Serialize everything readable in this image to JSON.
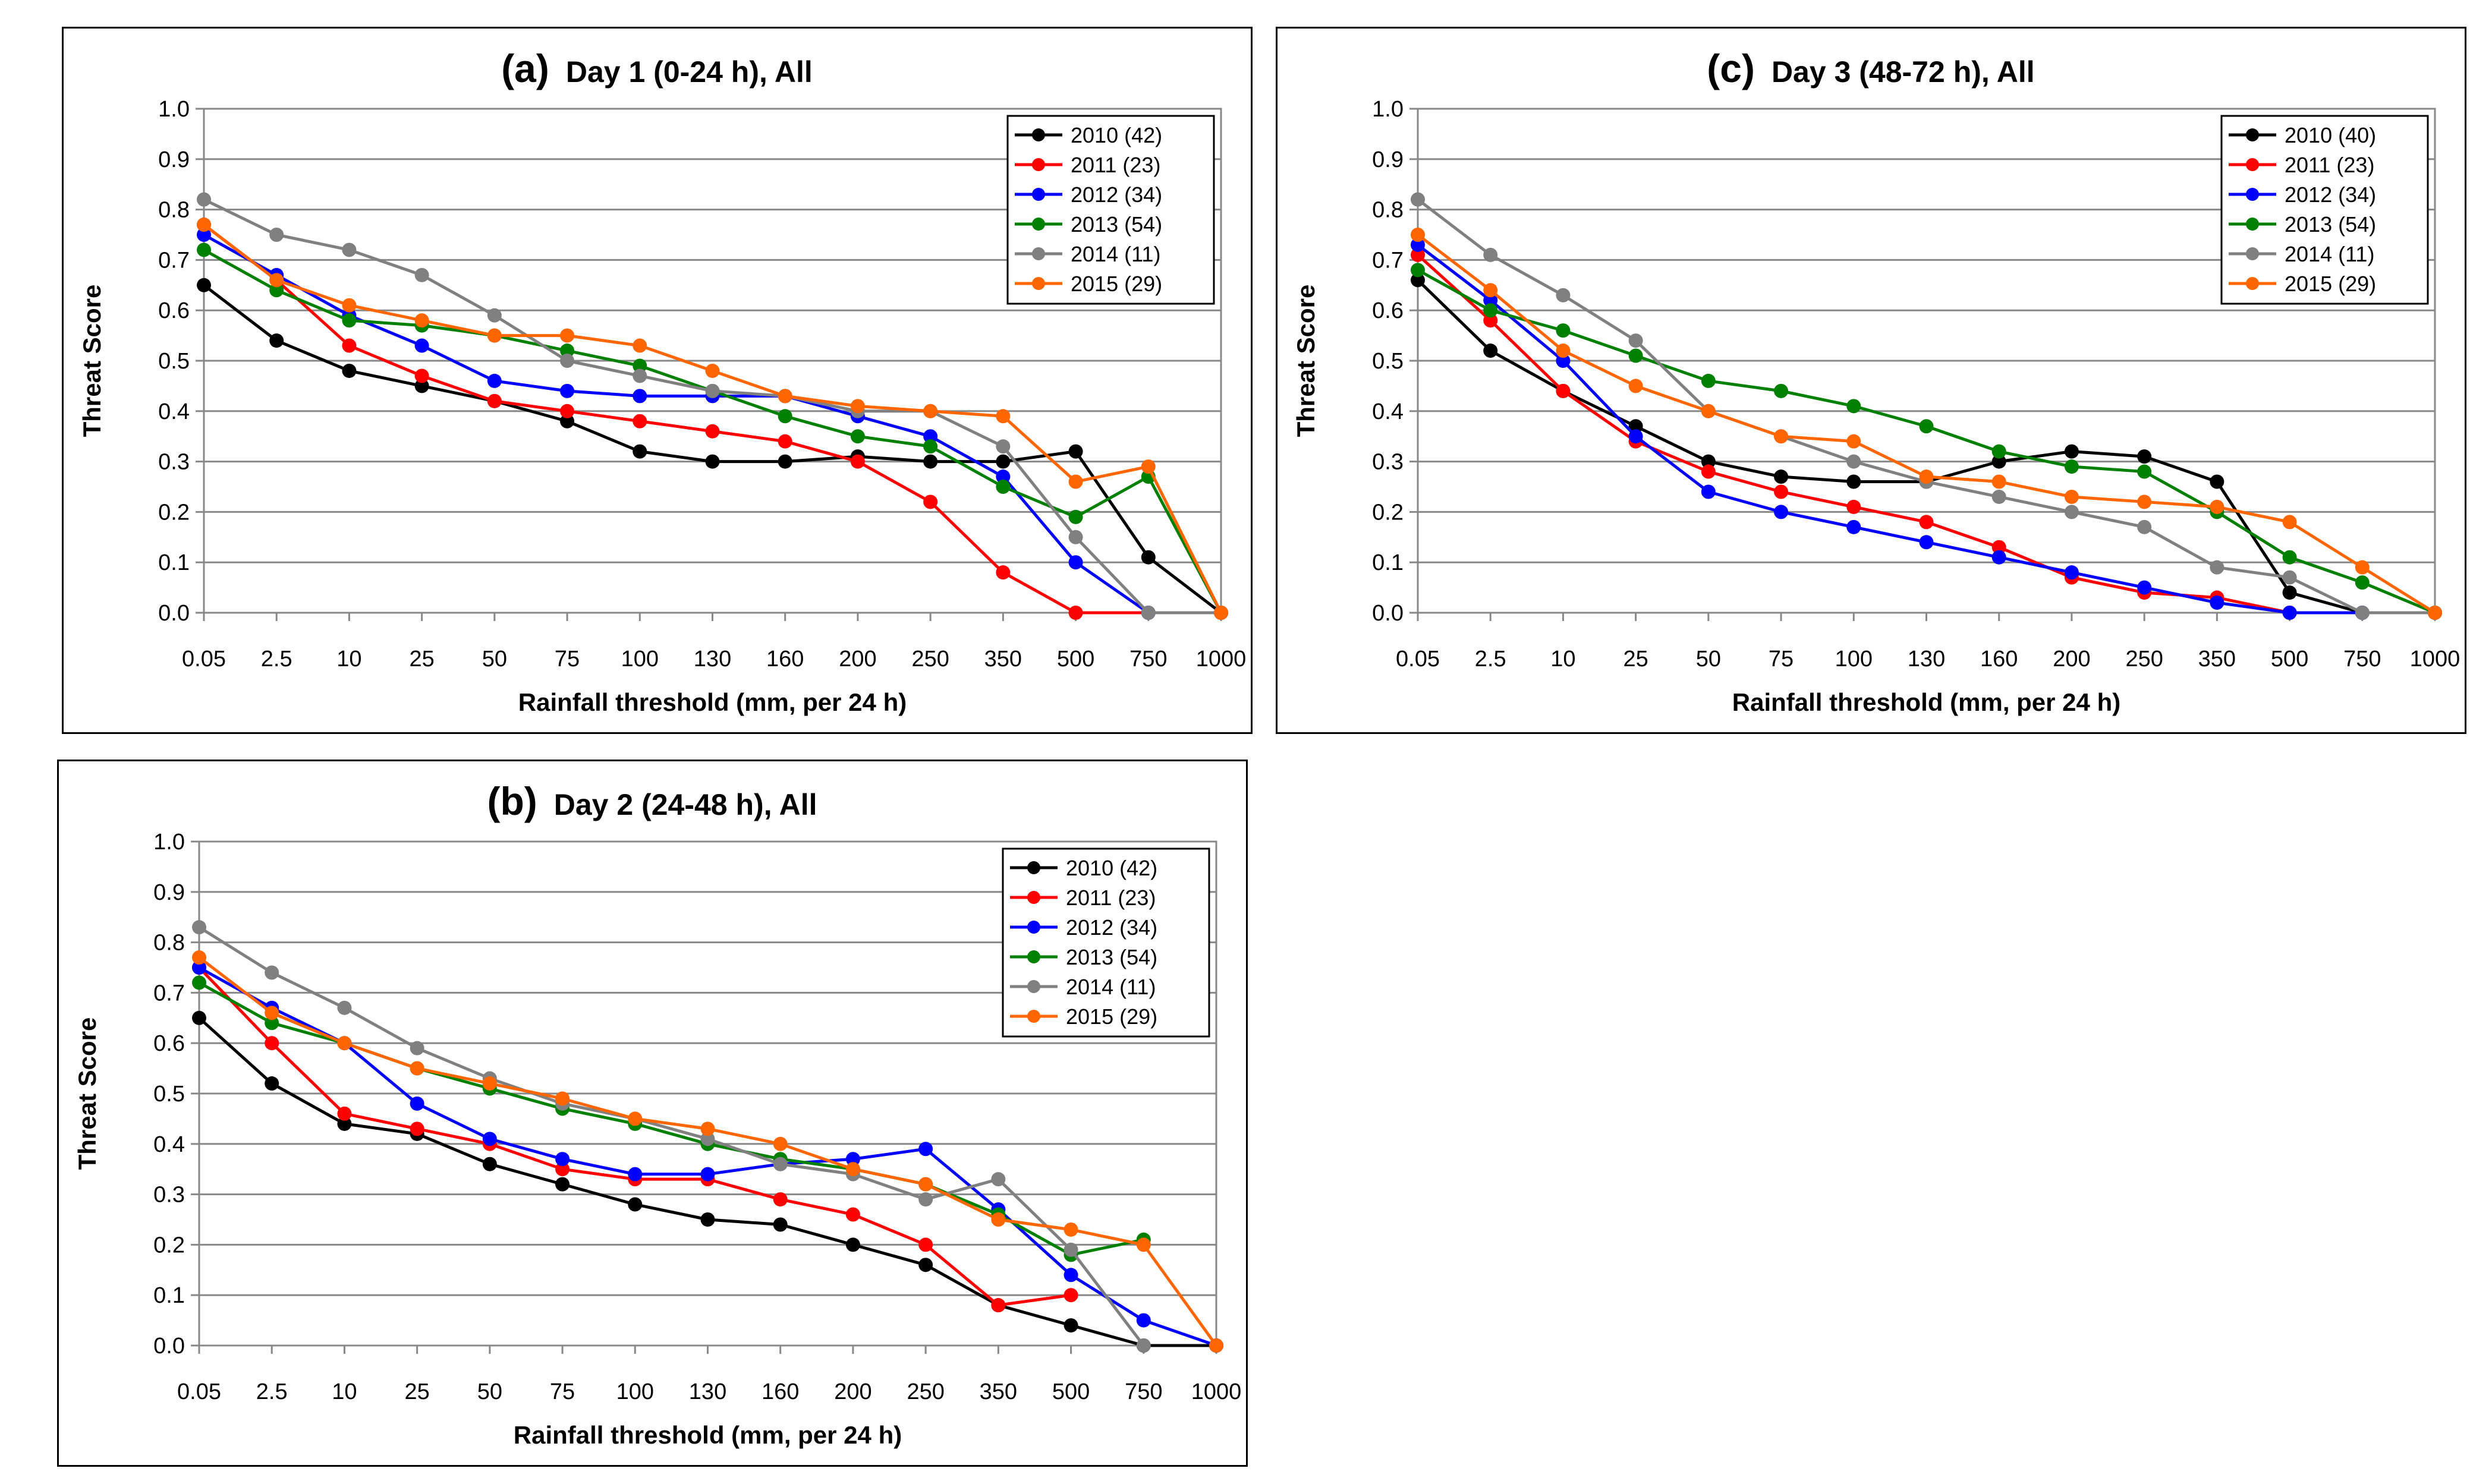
{
  "chart_data": [
    {
      "id": "a",
      "type": "line",
      "panel_letter": "(a)",
      "title": "Day 1 (0-24 h), All",
      "xlabel": "Rainfall threshold (mm, per 24 h)",
      "ylabel": "Threat Score",
      "ylim": [
        0,
        1.0
      ],
      "yticks": [
        "0.0",
        "0.1",
        "0.2",
        "0.3",
        "0.4",
        "0.5",
        "0.6",
        "0.7",
        "0.8",
        "0.9",
        "1.0"
      ],
      "categories": [
        "0.05",
        "2.5",
        "10",
        "25",
        "50",
        "75",
        "100",
        "130",
        "160",
        "200",
        "250",
        "350",
        "500",
        "750",
        "1000"
      ],
      "grid": "horizontal",
      "legend_position": "top-right",
      "series": [
        {
          "name": "2010 (42)",
          "color": "#000000",
          "values": [
            0.65,
            0.54,
            0.48,
            0.45,
            0.42,
            0.38,
            0.32,
            0.3,
            0.3,
            0.31,
            0.3,
            0.3,
            0.32,
            0.11,
            0.0
          ]
        },
        {
          "name": "2011 (23)",
          "color": "#ff0000",
          "values": [
            0.77,
            0.66,
            0.53,
            0.47,
            0.42,
            0.4,
            0.38,
            0.36,
            0.34,
            0.3,
            0.22,
            0.08,
            0.0,
            0.0,
            0.0
          ]
        },
        {
          "name": "2012 (34)",
          "color": "#0000ff",
          "values": [
            0.75,
            0.67,
            0.59,
            0.53,
            0.46,
            0.44,
            0.43,
            0.43,
            0.43,
            0.39,
            0.35,
            0.27,
            0.1,
            0.0,
            0.0
          ]
        },
        {
          "name": "2013 (54)",
          "color": "#008000",
          "values": [
            0.72,
            0.64,
            0.58,
            0.57,
            0.55,
            0.52,
            0.49,
            0.44,
            0.39,
            0.35,
            0.33,
            0.25,
            0.19,
            0.27,
            0.0
          ]
        },
        {
          "name": "2014 (11)",
          "color": "#808080",
          "values": [
            0.82,
            0.75,
            0.72,
            0.67,
            0.59,
            0.5,
            0.47,
            0.44,
            0.43,
            0.4,
            0.4,
            0.33,
            0.15,
            0.0,
            0.0
          ]
        },
        {
          "name": "2015 (29)",
          "color": "#ff6600",
          "values": [
            0.77,
            0.66,
            0.61,
            0.58,
            0.55,
            0.55,
            0.53,
            0.48,
            0.43,
            0.41,
            0.4,
            0.39,
            0.26,
            0.29,
            0.0
          ]
        }
      ]
    },
    {
      "id": "c",
      "type": "line",
      "panel_letter": "(c)",
      "title": "Day 3 (48-72 h), All",
      "xlabel": "Rainfall threshold (mm, per 24 h)",
      "ylabel": "Threat Score",
      "ylim": [
        0,
        1.0
      ],
      "yticks": [
        "0.0",
        "0.1",
        "0.2",
        "0.3",
        "0.4",
        "0.5",
        "0.6",
        "0.7",
        "0.8",
        "0.9",
        "1.0"
      ],
      "categories": [
        "0.05",
        "2.5",
        "10",
        "25",
        "50",
        "75",
        "100",
        "130",
        "160",
        "200",
        "250",
        "350",
        "500",
        "750",
        "1000"
      ],
      "grid": "horizontal",
      "legend_position": "top-right",
      "series": [
        {
          "name": "2010 (40)",
          "color": "#000000",
          "values": [
            0.66,
            0.52,
            0.44,
            0.37,
            0.3,
            0.27,
            0.26,
            0.26,
            0.3,
            0.32,
            0.31,
            0.26,
            0.04,
            0.0,
            0.0
          ]
        },
        {
          "name": "2011 (23)",
          "color": "#ff0000",
          "values": [
            0.71,
            0.58,
            0.44,
            0.34,
            0.28,
            0.24,
            0.21,
            0.18,
            0.13,
            0.07,
            0.04,
            0.03,
            0.0,
            0.0,
            0.0
          ]
        },
        {
          "name": "2012 (34)",
          "color": "#0000ff",
          "values": [
            0.73,
            0.62,
            0.5,
            0.35,
            0.24,
            0.2,
            0.17,
            0.14,
            0.11,
            0.08,
            0.05,
            0.02,
            0.0,
            0.0,
            0.0
          ]
        },
        {
          "name": "2013 (54)",
          "color": "#008000",
          "values": [
            0.68,
            0.6,
            0.56,
            0.51,
            0.46,
            0.44,
            0.41,
            0.37,
            0.32,
            0.29,
            0.28,
            0.2,
            0.11,
            0.06,
            0.0
          ]
        },
        {
          "name": "2014 (11)",
          "color": "#808080",
          "values": [
            0.82,
            0.71,
            0.63,
            0.54,
            0.4,
            0.35,
            0.3,
            0.26,
            0.23,
            0.2,
            0.17,
            0.09,
            0.07,
            0.0,
            0.0
          ]
        },
        {
          "name": "2015 (29)",
          "color": "#ff6600",
          "values": [
            0.75,
            0.64,
            0.52,
            0.45,
            0.4,
            0.35,
            0.34,
            0.27,
            0.26,
            0.23,
            0.22,
            0.21,
            0.18,
            0.09,
            0.0
          ]
        }
      ]
    },
    {
      "id": "b",
      "type": "line",
      "panel_letter": "(b)",
      "title": "Day 2 (24-48 h), All",
      "xlabel": "Rainfall threshold (mm, per 24 h)",
      "ylabel": "Threat Score",
      "ylim": [
        0,
        1.0
      ],
      "yticks": [
        "0.0",
        "0.1",
        "0.2",
        "0.3",
        "0.4",
        "0.5",
        "0.6",
        "0.7",
        "0.8",
        "0.9",
        "1.0"
      ],
      "categories": [
        "0.05",
        "2.5",
        "10",
        "25",
        "50",
        "75",
        "100",
        "130",
        "160",
        "200",
        "250",
        "350",
        "500",
        "750",
        "1000"
      ],
      "grid": "horizontal",
      "legend_position": "top-right",
      "series": [
        {
          "name": "2010 (42)",
          "color": "#000000",
          "values": [
            0.65,
            0.52,
            0.44,
            0.42,
            0.36,
            0.32,
            0.28,
            0.25,
            0.24,
            0.2,
            0.16,
            0.08,
            0.04,
            0.0,
            0.0
          ]
        },
        {
          "name": "2011 (23)",
          "color": "#ff0000",
          "values": [
            0.75,
            0.6,
            0.46,
            0.43,
            0.4,
            0.35,
            0.33,
            0.33,
            0.29,
            0.26,
            0.2,
            0.08,
            0.1,
            null,
            null
          ]
        },
        {
          "name": "2012 (34)",
          "color": "#0000ff",
          "values": [
            0.75,
            0.67,
            0.6,
            0.48,
            0.41,
            0.37,
            0.34,
            0.34,
            0.36,
            0.37,
            0.39,
            0.27,
            0.14,
            0.05,
            0.0
          ]
        },
        {
          "name": "2013 (54)",
          "color": "#008000",
          "values": [
            0.72,
            0.64,
            0.6,
            0.55,
            0.51,
            0.47,
            0.44,
            0.4,
            0.37,
            0.35,
            0.32,
            0.26,
            0.18,
            0.21,
            null
          ]
        },
        {
          "name": "2014 (11)",
          "color": "#808080",
          "values": [
            0.83,
            0.74,
            0.67,
            0.59,
            0.53,
            0.48,
            0.45,
            0.41,
            0.36,
            0.34,
            0.29,
            0.33,
            0.19,
            0.0,
            null
          ]
        },
        {
          "name": "2015 (29)",
          "color": "#ff6600",
          "values": [
            0.77,
            0.66,
            0.6,
            0.55,
            0.52,
            0.49,
            0.45,
            0.43,
            0.4,
            0.35,
            0.32,
            0.25,
            0.23,
            0.2,
            0.0
          ]
        }
      ]
    }
  ]
}
